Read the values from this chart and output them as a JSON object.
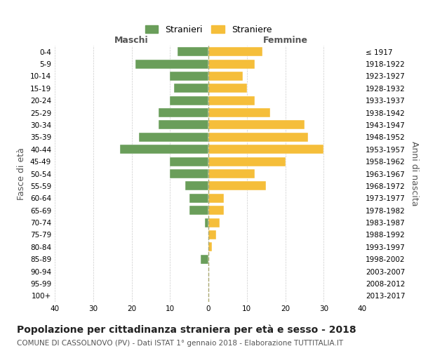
{
  "age_groups": [
    "0-4",
    "5-9",
    "10-14",
    "15-19",
    "20-24",
    "25-29",
    "30-34",
    "35-39",
    "40-44",
    "45-49",
    "50-54",
    "55-59",
    "60-64",
    "65-69",
    "70-74",
    "75-79",
    "80-84",
    "85-89",
    "90-94",
    "95-99",
    "100+"
  ],
  "birth_years": [
    "2013-2017",
    "2008-2012",
    "2003-2007",
    "1998-2002",
    "1993-1997",
    "1988-1992",
    "1983-1987",
    "1978-1982",
    "1973-1977",
    "1968-1972",
    "1963-1967",
    "1958-1962",
    "1953-1957",
    "1948-1952",
    "1943-1947",
    "1938-1942",
    "1933-1937",
    "1928-1932",
    "1923-1927",
    "1918-1922",
    "≤ 1917"
  ],
  "maschi": [
    8,
    19,
    10,
    9,
    10,
    13,
    13,
    18,
    23,
    10,
    10,
    6,
    5,
    5,
    1,
    0,
    0,
    2,
    0,
    0,
    0
  ],
  "femmine": [
    14,
    12,
    9,
    10,
    12,
    16,
    25,
    26,
    30,
    20,
    12,
    15,
    4,
    4,
    3,
    2,
    1,
    0,
    0,
    0,
    0
  ],
  "color_maschi": "#6a9e5a",
  "color_femmine": "#f5be3a",
  "background_color": "#ffffff",
  "grid_color": "#cccccc",
  "title": "Popolazione per cittadinanza straniera per età e sesso - 2018",
  "subtitle": "COMUNE DI CASSOLNOVO (PV) - Dati ISTAT 1° gennaio 2018 - Elaborazione TUTTITALIA.IT",
  "xlabel_left": "Maschi",
  "xlabel_right": "Femmine",
  "ylabel_left": "Fasce di età",
  "ylabel_right": "Anni di nascita",
  "legend_maschi": "Stranieri",
  "legend_femmine": "Straniere",
  "xlim": 40,
  "title_fontsize": 10,
  "subtitle_fontsize": 7.5,
  "tick_fontsize": 7.5,
  "label_fontsize": 9
}
